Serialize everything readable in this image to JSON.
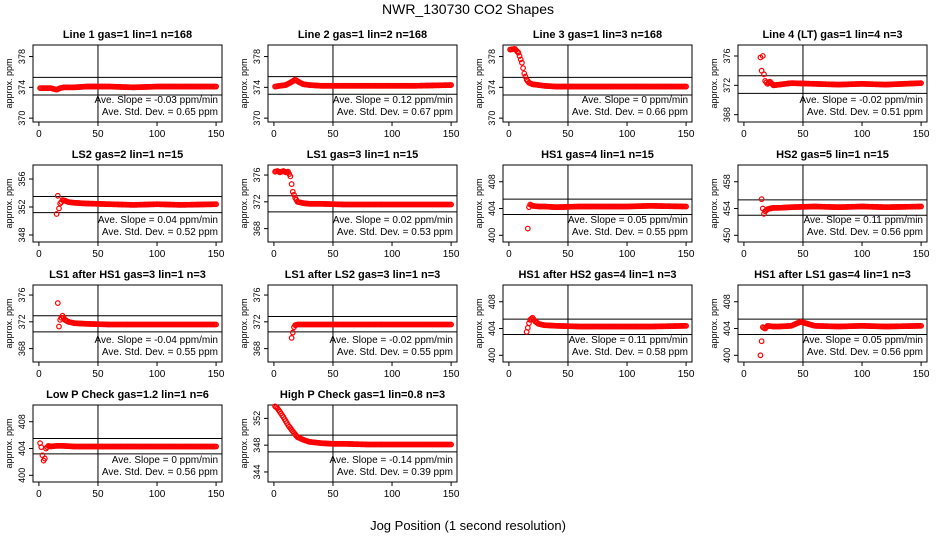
{
  "figure": {
    "title": "NWR_130730  CO2 Shapes",
    "xlabel": "Jog Position (1 second resolution)",
    "point_color": "#ff0000",
    "line_color": "#000000"
  },
  "chart_data": [
    {
      "type": "scatter",
      "title": "Line 1 gas=1 lin=1 n=168",
      "ylabel": "approx. ppm",
      "xlim": [
        -5,
        155
      ],
      "ylim": [
        369.5,
        379.5
      ],
      "yticks": [
        370,
        374,
        378
      ],
      "xticks": [
        0,
        50,
        100,
        150
      ],
      "hlines": [
        375.3,
        373.0
      ],
      "vline": 50,
      "slope_text": "Ave. Slope = -0.03 ppm/min",
      "std_text": "Ave. Std. Dev. = 0.65 ppm",
      "series": [
        {
          "x": [
            1,
            5,
            10,
            15,
            18,
            21,
            25,
            30,
            40,
            60,
            80,
            100,
            120,
            150
          ],
          "y": [
            373.9,
            373.9,
            373.9,
            373.7,
            373.9,
            374.0,
            374.0,
            374.0,
            374.1,
            374.1,
            374.0,
            374.1,
            374.1,
            374.1
          ]
        }
      ]
    },
    {
      "type": "scatter",
      "title": "Line 2 gas=1 lin=2 n=168",
      "ylabel": "approx. ppm",
      "xlim": [
        -5,
        155
      ],
      "ylim": [
        369.5,
        379.5
      ],
      "yticks": [
        370,
        374,
        378
      ],
      "xticks": [
        0,
        50,
        100,
        150
      ],
      "hlines": [
        375.4,
        373.1
      ],
      "vline": 50,
      "slope_text": "Ave. Slope = 0.12 ppm/min",
      "std_text": "Ave. Std. Dev. = 0.67 ppm",
      "series": [
        {
          "x": [
            1,
            5,
            10,
            15,
            18,
            21,
            25,
            30,
            40,
            60,
            80,
            100,
            120,
            150
          ],
          "y": [
            374.1,
            374.2,
            374.3,
            374.7,
            375.0,
            374.7,
            374.4,
            374.3,
            374.2,
            374.2,
            374.2,
            374.2,
            374.2,
            374.3
          ]
        }
      ]
    },
    {
      "type": "scatter",
      "title": "Line 3 gas=1 lin=3 n=168",
      "ylabel": "approx. ppm",
      "xlim": [
        -5,
        155
      ],
      "ylim": [
        369.5,
        379.5
      ],
      "yticks": [
        370,
        374,
        378
      ],
      "xticks": [
        0,
        50,
        100,
        150
      ],
      "hlines": [
        375.3,
        373.0
      ],
      "vline": 50,
      "slope_text": "Ave. Slope = 0 ppm/min",
      "std_text": "Ave. Std. Dev. = 0.66 ppm",
      "series": [
        {
          "x": [
            1,
            5,
            8,
            11,
            13,
            15,
            17,
            20,
            25,
            30,
            40,
            60,
            80,
            100,
            120,
            150
          ],
          "y": [
            378.9,
            379.0,
            378.5,
            377.2,
            375.8,
            375.0,
            374.6,
            374.4,
            374.3,
            374.2,
            374.1,
            374.1,
            374.1,
            374.1,
            374.1,
            374.1
          ]
        }
      ]
    },
    {
      "type": "scatter",
      "title": "Line 4 (LT) gas=1 lin=4 n=3",
      "ylabel": "approx. ppm",
      "xlim": [
        -5,
        155
      ],
      "ylim": [
        367,
        377.5
      ],
      "yticks": [
        368,
        372,
        376
      ],
      "xticks": [
        0,
        50,
        100,
        150
      ],
      "hlines": [
        373.3,
        370.9
      ],
      "vline": 50,
      "slope_text": "Ave. Slope = -0.02 ppm/min",
      "std_text": "Ave. Std. Dev. = 0.51 ppm",
      "series": [
        {
          "x": [
            14,
            15,
            16,
            17,
            18,
            20,
            22,
            25,
            30,
            40,
            60,
            80,
            100,
            120,
            150
          ],
          "y": [
            375.8,
            374.0,
            376.0,
            373.5,
            372.6,
            372.2,
            372.5,
            372.0,
            372.1,
            372.3,
            372.2,
            372.1,
            372.2,
            372.1,
            372.3
          ]
        }
      ]
    },
    {
      "type": "scatter",
      "title": "LS2 gas=2 lin=1 n=15",
      "ylabel": "approx. ppm",
      "xlim": [
        -5,
        155
      ],
      "ylim": [
        347,
        358
      ],
      "yticks": [
        348,
        352,
        356
      ],
      "xticks": [
        0,
        50,
        100,
        150
      ],
      "hlines": [
        353.5,
        351.2
      ],
      "vline": 50,
      "slope_text": "Ave. Slope = 0.04 ppm/min",
      "std_text": "Ave. Std. Dev. = 0.52 ppm",
      "series": [
        {
          "x": [
            15,
            16,
            17,
            18,
            19,
            20,
            22,
            25,
            30,
            40,
            60,
            80,
            100,
            120,
            150
          ],
          "y": [
            351.0,
            353.6,
            351.8,
            352.5,
            352.7,
            353.0,
            352.9,
            352.7,
            352.6,
            352.5,
            352.4,
            352.3,
            352.4,
            352.3,
            352.4
          ]
        }
      ]
    },
    {
      "type": "scatter",
      "title": "LS1 gas=3 lin=1 n=15",
      "ylabel": "approx. ppm",
      "xlim": [
        -5,
        155
      ],
      "ylim": [
        366,
        377.5
      ],
      "yticks": [
        368,
        372,
        376
      ],
      "xticks": [
        0,
        50,
        100,
        150
      ],
      "hlines": [
        372.9,
        370.5
      ],
      "vline": 50,
      "slope_text": "Ave. Slope = 0.02 ppm/min",
      "std_text": "Ave. Std. Dev. = 0.53 ppm",
      "series": [
        {
          "x": [
            1,
            3,
            5,
            8,
            10,
            12,
            14,
            16,
            18,
            20,
            25,
            30,
            40,
            60,
            80,
            100,
            120,
            150
          ],
          "y": [
            376.5,
            376.6,
            376.4,
            376.6,
            376.4,
            376.5,
            375.8,
            373.5,
            372.6,
            372.0,
            371.8,
            371.7,
            371.7,
            371.6,
            371.6,
            371.6,
            371.6,
            371.6
          ]
        }
      ]
    },
    {
      "type": "scatter",
      "title": "HS1 gas=4 lin=1 n=15",
      "ylabel": "approx. ppm",
      "xlim": [
        -5,
        155
      ],
      "ylim": [
        399,
        410.5
      ],
      "yticks": [
        400,
        404,
        408
      ],
      "xticks": [
        0,
        50,
        100,
        150
      ],
      "hlines": [
        405.4,
        403.1
      ],
      "vline": 50,
      "slope_text": "Ave. Slope = 0.05 ppm/min",
      "std_text": "Ave. Std. Dev. = 0.55 ppm",
      "series": [
        {
          "x": [
            16,
            17,
            18,
            20,
            25,
            30,
            40,
            60,
            80,
            100,
            120,
            150
          ],
          "y": [
            401.0,
            404.2,
            404.6,
            404.4,
            404.3,
            404.3,
            404.2,
            404.3,
            404.3,
            404.3,
            404.4,
            404.3
          ]
        }
      ]
    },
    {
      "type": "scatter",
      "title": "HS2 gas=5 lin=1 n=15",
      "ylabel": "approx. ppm",
      "xlim": [
        -5,
        155
      ],
      "ylim": [
        449,
        460.5
      ],
      "yticks": [
        450,
        454,
        458
      ],
      "xticks": [
        0,
        50,
        100,
        150
      ],
      "hlines": [
        455.3,
        453.0
      ],
      "vline": 50,
      "slope_text": "Ave. Slope = 0.11 ppm/min",
      "std_text": "Ave. Std. Dev. = 0.56 ppm",
      "series": [
        {
          "x": [
            15,
            16,
            17,
            18,
            20,
            22,
            25,
            30,
            40,
            60,
            80,
            100,
            120,
            150
          ],
          "y": [
            455.4,
            454.0,
            453.2,
            453.6,
            453.9,
            454.0,
            454.1,
            454.1,
            454.2,
            454.3,
            454.2,
            454.3,
            454.2,
            454.3
          ]
        }
      ]
    },
    {
      "type": "scatter",
      "title": "LS1 after HS1 gas=3 lin=1 n=3",
      "ylabel": "approx. ppm",
      "xlim": [
        -5,
        155
      ],
      "ylim": [
        366,
        377.5
      ],
      "yticks": [
        368,
        372,
        376
      ],
      "xticks": [
        0,
        50,
        100,
        150
      ],
      "hlines": [
        372.9,
        370.5
      ],
      "vline": 50,
      "slope_text": "Ave. Slope = -0.04 ppm/min",
      "std_text": "Ave. Std. Dev. = 0.55 ppm",
      "series": [
        {
          "x": [
            16,
            17,
            18,
            20,
            22,
            25,
            30,
            40,
            60,
            80,
            100,
            120,
            150
          ],
          "y": [
            374.8,
            371.3,
            372.3,
            372.9,
            372.3,
            372.0,
            371.8,
            371.7,
            371.6,
            371.6,
            371.6,
            371.6,
            371.6
          ]
        }
      ]
    },
    {
      "type": "scatter",
      "title": "LS1 after LS2 gas=3 lin=1 n=3",
      "ylabel": "approx. ppm",
      "xlim": [
        -5,
        155
      ],
      "ylim": [
        366,
        377.5
      ],
      "yticks": [
        368,
        372,
        376
      ],
      "xticks": [
        0,
        50,
        100,
        150
      ],
      "hlines": [
        372.8,
        370.5
      ],
      "vline": 50,
      "slope_text": "Ave. Slope = -0.02 ppm/min",
      "std_text": "Ave. Std. Dev. = 0.55 ppm",
      "series": [
        {
          "x": [
            15,
            16,
            17,
            18,
            20,
            25,
            30,
            40,
            60,
            80,
            100,
            120,
            150
          ],
          "y": [
            369.6,
            370.4,
            371.2,
            371.5,
            371.6,
            371.6,
            371.6,
            371.6,
            371.6,
            371.6,
            371.6,
            371.6,
            371.6
          ]
        }
      ]
    },
    {
      "type": "scatter",
      "title": "HS1 after HS2 gas=4 lin=1 n=3",
      "ylabel": "approx. ppm",
      "xlim": [
        -5,
        155
      ],
      "ylim": [
        399,
        410.5
      ],
      "yticks": [
        400,
        404,
        408
      ],
      "xticks": [
        0,
        50,
        100,
        150
      ],
      "hlines": [
        405.4,
        403.1
      ],
      "vline": 50,
      "slope_text": "Ave. Slope = 0.11 ppm/min",
      "std_text": "Ave. Std. Dev. = 0.58 ppm",
      "series": [
        {
          "x": [
            15,
            16,
            17,
            18,
            20,
            22,
            25,
            30,
            40,
            60,
            80,
            100,
            120,
            150
          ],
          "y": [
            403.5,
            404.1,
            404.8,
            405.3,
            405.6,
            405.1,
            404.7,
            404.5,
            404.4,
            404.3,
            404.3,
            404.3,
            404.3,
            404.4
          ]
        }
      ]
    },
    {
      "type": "scatter",
      "title": "HS1 after LS1 gas=4 lin=1 n=3",
      "ylabel": "approx. ppm",
      "xlim": [
        -5,
        155
      ],
      "ylim": [
        399,
        410.5
      ],
      "yticks": [
        400,
        404,
        408
      ],
      "xticks": [
        0,
        50,
        100,
        150
      ],
      "hlines": [
        405.4,
        403.1
      ],
      "vline": 50,
      "slope_text": "Ave. Slope = 0.05 ppm/min",
      "std_text": "Ave. Std. Dev. = 0.56 ppm",
      "series": [
        {
          "x": [
            14,
            16,
            18,
            20,
            25,
            30,
            40,
            48,
            60,
            80,
            100,
            120,
            150
          ],
          "y": [
            400.0,
            404.2,
            404.0,
            404.4,
            404.3,
            404.3,
            404.4,
            405.0,
            404.4,
            404.3,
            404.4,
            404.3,
            404.4
          ]
        }
      ]
    },
    {
      "type": "scatter",
      "title": "Low P Check gas=1.2 lin=1 n=6",
      "ylabel": "approx. ppm",
      "xlim": [
        -5,
        155
      ],
      "ylim": [
        399,
        410.5
      ],
      "yticks": [
        400,
        404,
        408
      ],
      "xticks": [
        0,
        50,
        100,
        150
      ],
      "hlines": [
        405.5,
        403.2
      ],
      "vline": 50,
      "slope_text": "Ave. Slope = 0 ppm/min",
      "std_text": "Ave. Std. Dev. = 0.56 ppm",
      "series": [
        {
          "x": [
            1,
            2,
            3,
            4,
            5,
            6,
            8,
            10,
            15,
            20,
            30,
            40,
            60,
            80,
            100,
            120,
            150
          ],
          "y": [
            404.8,
            404.2,
            403.0,
            402.2,
            402.5,
            404.0,
            404.4,
            404.3,
            404.4,
            404.4,
            404.3,
            404.3,
            404.3,
            404.3,
            404.3,
            404.3,
            404.3
          ]
        }
      ]
    },
    {
      "type": "scatter",
      "title": "High P Check gas=1 lin=0.8 n=3",
      "ylabel": "approx. ppm",
      "xlim": [
        -5,
        155
      ],
      "ylim": [
        342.5,
        354
      ],
      "yticks": [
        344,
        348,
        352
      ],
      "xticks": [
        0,
        50,
        100,
        150
      ],
      "hlines": [
        349.5,
        347.0
      ],
      "vline": 50,
      "slope_text": "Ave. Slope = -0.14 ppm/min",
      "std_text": "Ave. Std. Dev. = 0.39 ppm",
      "series": [
        {
          "x": [
            1,
            3,
            5,
            8,
            10,
            12,
            15,
            18,
            20,
            25,
            30,
            35,
            40,
            50,
            60,
            80,
            100,
            120,
            150
          ],
          "y": [
            353.8,
            353.5,
            353.0,
            352.2,
            351.6,
            351.0,
            350.3,
            349.6,
            349.2,
            348.8,
            348.5,
            348.4,
            348.3,
            348.2,
            348.2,
            348.1,
            348.1,
            348.1,
            348.1
          ]
        }
      ]
    }
  ]
}
